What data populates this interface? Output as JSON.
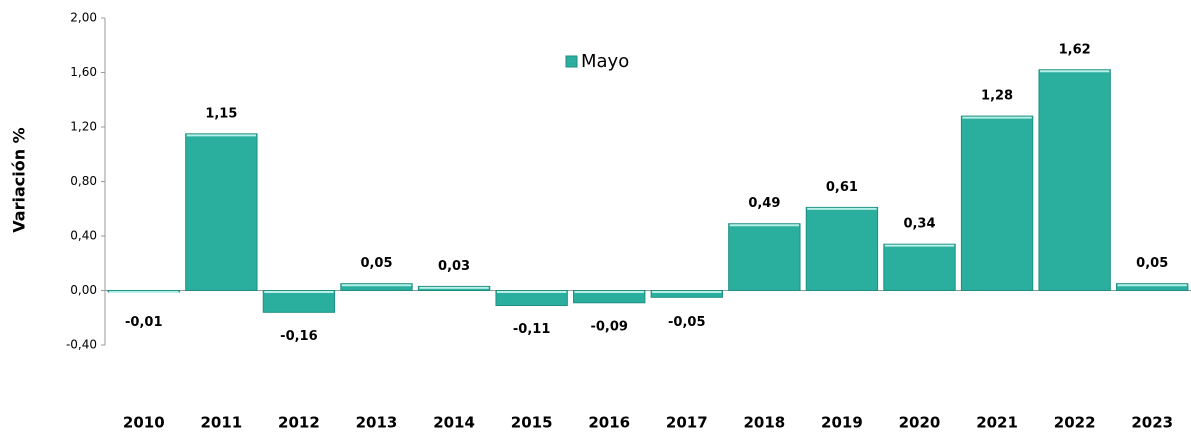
{
  "chart_data": {
    "type": "bar",
    "y_label": "Variación %",
    "categories": [
      "2010",
      "2011",
      "2012",
      "2013",
      "2014",
      "2015",
      "2016",
      "2017",
      "2018",
      "2019",
      "2020",
      "2021",
      "2022",
      "2023"
    ],
    "series": [
      {
        "name": "Mayo",
        "color": "#2aaf9f",
        "values": [
          -0.01,
          1.15,
          -0.16,
          0.05,
          0.03,
          -0.11,
          -0.09,
          -0.05,
          0.49,
          0.61,
          0.34,
          1.28,
          1.62,
          0.05
        ],
        "value_labels": [
          "-0,01",
          "1,15",
          "-0,16",
          "0,05",
          "0,03",
          "-0,11",
          "-0,09",
          "-0,05",
          "0,49",
          "0,61",
          "0,34",
          "1,28",
          "1,62",
          "0,05"
        ]
      }
    ],
    "ylim": [
      -0.4,
      2.0
    ],
    "yticks": [
      {
        "value": -0.4,
        "label": "-0,40"
      },
      {
        "value": 0,
        "label": "0,00"
      },
      {
        "value": 0.4,
        "label": "0,40"
      },
      {
        "value": 0.8,
        "label": "0,80"
      },
      {
        "value": 1.2,
        "label": "1,20"
      },
      {
        "value": 1.6,
        "label": "1,60"
      },
      {
        "value": 2.0,
        "label": "2,00"
      }
    ]
  }
}
